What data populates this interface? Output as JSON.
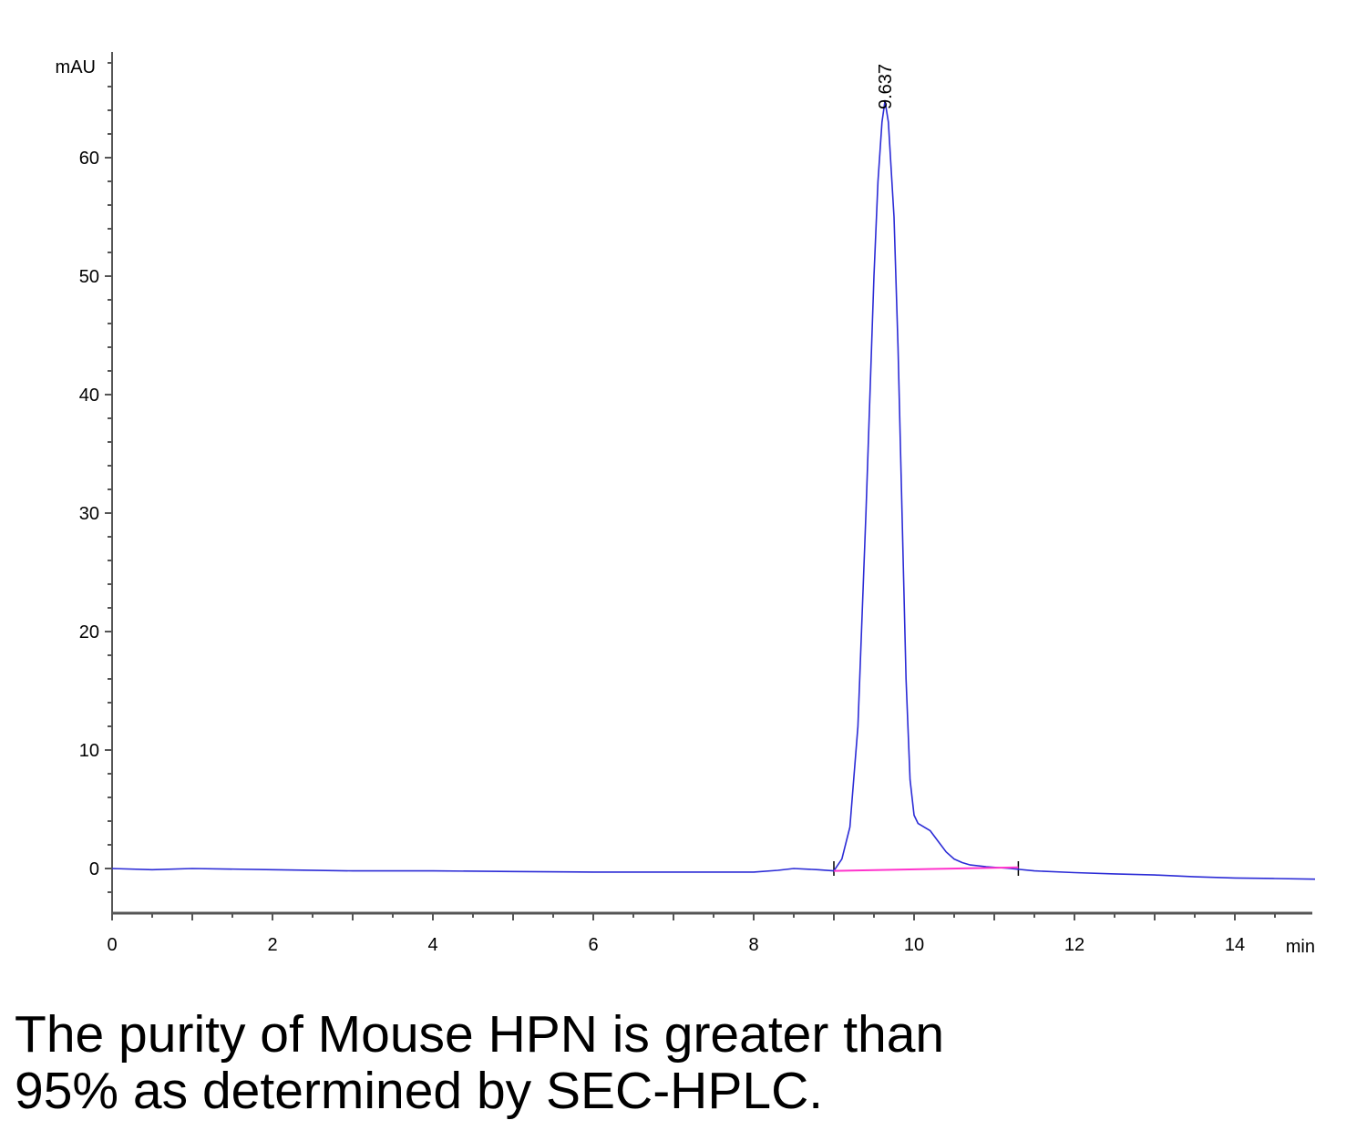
{
  "chart_data": {
    "type": "line",
    "title": "",
    "xlabel": "min",
    "ylabel": "mAU",
    "xlim": [
      0,
      15
    ],
    "ylim": [
      -3.8,
      68
    ],
    "x_ticks": [
      0,
      2,
      4,
      6,
      8,
      10,
      12,
      14
    ],
    "y_ticks": [
      0,
      10,
      20,
      30,
      40,
      50,
      60
    ],
    "grid": false,
    "series": [
      {
        "color": "#2b2bd6",
        "x": [
          0,
          0.5,
          1,
          2,
          3,
          4,
          5,
          6,
          7,
          8,
          8.3,
          8.5,
          8.8,
          9.0,
          9.1,
          9.2,
          9.3,
          9.4,
          9.5,
          9.55,
          9.6,
          9.637,
          9.68,
          9.75,
          9.8,
          9.85,
          9.9,
          9.95,
          10.0,
          10.05,
          10.1,
          10.2,
          10.3,
          10.4,
          10.5,
          10.6,
          10.7,
          10.9,
          11.2,
          11.5,
          12,
          12.5,
          13,
          13.5,
          14,
          14.5,
          15
        ],
        "values": [
          0,
          -0.1,
          0,
          -0.1,
          -0.2,
          -0.2,
          -0.25,
          -0.3,
          -0.3,
          -0.3,
          -0.15,
          0,
          -0.1,
          -0.2,
          0.8,
          3.5,
          12,
          30,
          50,
          58,
          63,
          64.8,
          63,
          55,
          44,
          30,
          16,
          7.5,
          4.5,
          3.8,
          3.6,
          3.2,
          2.3,
          1.4,
          0.8,
          0.5,
          0.3,
          0.15,
          0,
          -0.2,
          -0.35,
          -0.45,
          -0.55,
          -0.7,
          -0.8,
          -0.85,
          -0.9
        ]
      },
      {
        "color": "#ff33cc",
        "x": [
          9.0,
          11.3
        ],
        "values": [
          -0.2,
          0.1
        ]
      }
    ],
    "annotations": [
      {
        "text": "9.637",
        "x": 9.637,
        "y": 64.8
      }
    ],
    "integration_marks": [
      9.0,
      11.3
    ]
  },
  "caption": {
    "line1": "The purity of Mouse HPN is greater than",
    "line2": "95% as determined by SEC-HPLC."
  }
}
